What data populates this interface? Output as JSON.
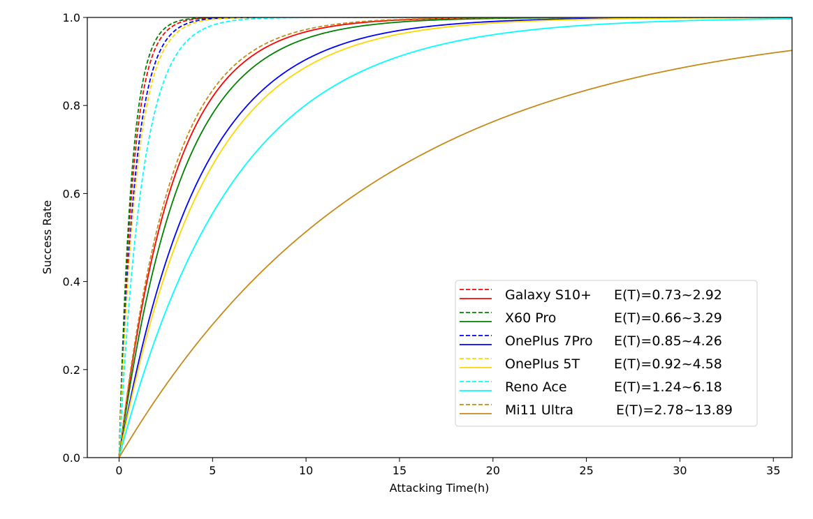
{
  "chart_data": {
    "type": "line",
    "title": "",
    "xlabel": "Attacking Time(h)",
    "ylabel": "Success Rate",
    "xlim": [
      -1.7,
      36
    ],
    "ylim": [
      0,
      1.0
    ],
    "x_ticks": [
      0,
      5,
      10,
      15,
      20,
      25,
      30,
      35
    ],
    "y_ticks": [
      0.0,
      0.2,
      0.4,
      0.6,
      0.8,
      1.0
    ],
    "x_tick_labels": [
      "0",
      "5",
      "10",
      "15",
      "20",
      "25",
      "30",
      "35"
    ],
    "y_tick_labels": [
      "0.0",
      "0.2",
      "0.4",
      "0.6",
      "0.8",
      "1.0"
    ],
    "grid": false,
    "legend_position": "lower-right",
    "curve_model": "success = 1 - exp(-t / E(T))",
    "series": [
      {
        "name": "Galaxy S10+",
        "etext": "E(T)=0.73~2.92",
        "color": "#ff0000",
        "low": 0.73,
        "high": 2.92
      },
      {
        "name": "X60 Pro",
        "etext": "E(T)=0.66~3.29",
        "color": "#008000",
        "low": 0.66,
        "high": 3.29
      },
      {
        "name": "OnePlus 7Pro",
        "etext": "E(T)=0.85~4.26",
        "color": "#0000ff",
        "low": 0.85,
        "high": 4.26
      },
      {
        "name": "OnePlus 5T",
        "etext": "E(T)=0.92~4.58",
        "color": "#ffd700",
        "low": 0.92,
        "high": 4.58
      },
      {
        "name": "Reno Ace",
        "etext": "E(T)=1.24~6.18",
        "color": "#00ffff",
        "low": 1.24,
        "high": 6.18
      },
      {
        "name": "Mi11 Ultra",
        "etext": "E(T)=2.78~13.89",
        "color": "#c58a18",
        "low": 2.78,
        "high": 13.89
      }
    ]
  }
}
